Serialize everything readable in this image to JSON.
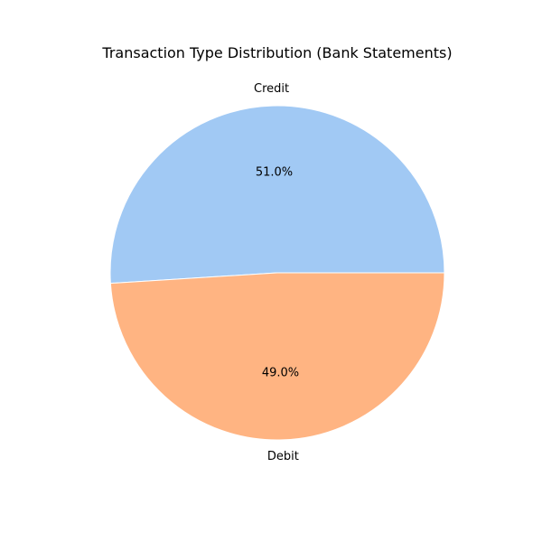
{
  "chart_data": {
    "type": "pie",
    "title": "Transaction Type Distribution (Bank Statements)",
    "slices": [
      {
        "label": "Credit",
        "value": 51.0,
        "pct_label": "51.0%",
        "color": "#a1c9f4"
      },
      {
        "label": "Debit",
        "value": 49.0,
        "pct_label": "49.0%",
        "color": "#ffb482"
      }
    ],
    "start_angle_deg": 0,
    "direction": "counterclockwise"
  }
}
